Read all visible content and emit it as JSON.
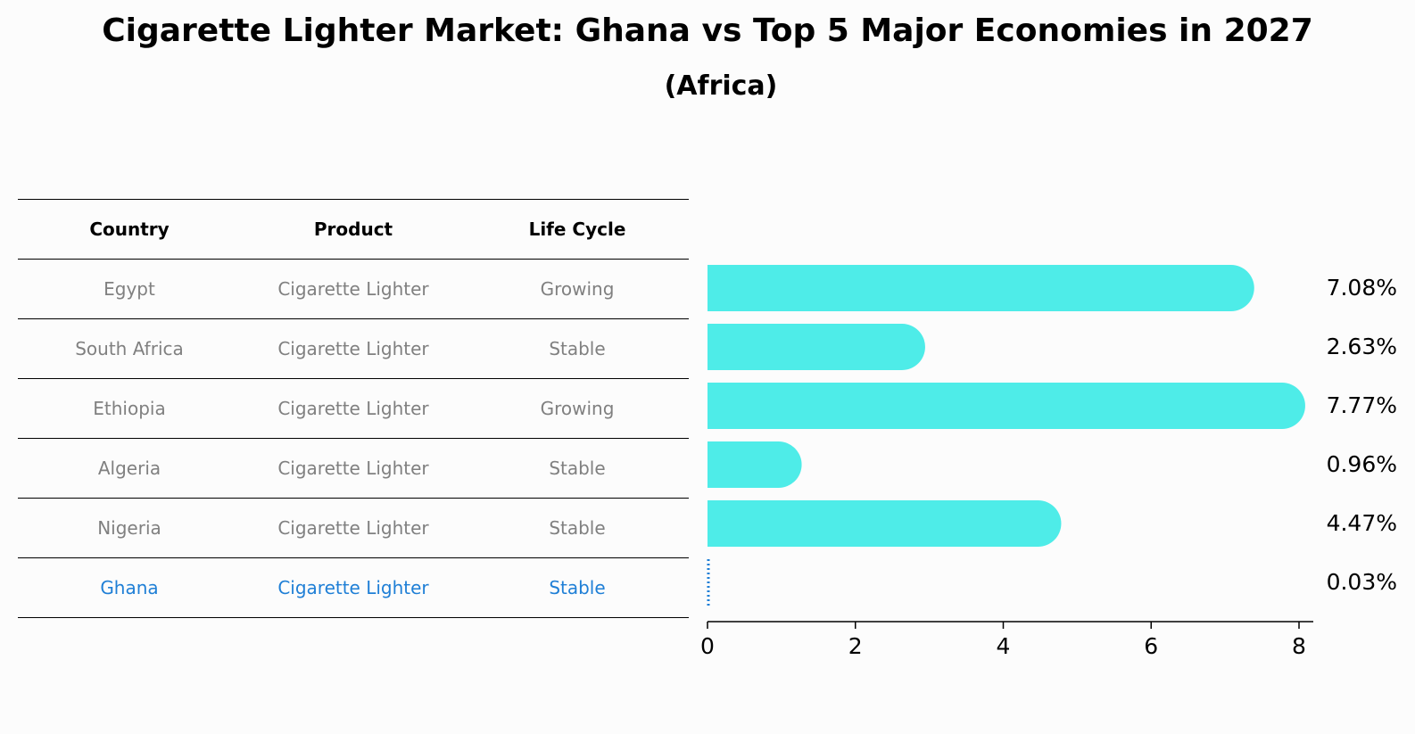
{
  "title": "Cigarette Lighter Market: Ghana vs Top 5 Major Economies in 2027",
  "subtitle": "(Africa)",
  "table": {
    "headers": [
      "Country",
      "Product",
      "Life Cycle"
    ],
    "rows": [
      {
        "country": "Egypt",
        "product": "Cigarette Lighter",
        "life_cycle": "Growing"
      },
      {
        "country": "South Africa",
        "product": "Cigarette Lighter",
        "life_cycle": "Stable"
      },
      {
        "country": "Ethiopia",
        "product": "Cigarette Lighter",
        "life_cycle": "Growing"
      },
      {
        "country": "Algeria",
        "product": "Cigarette Lighter",
        "life_cycle": "Stable"
      },
      {
        "country": "Nigeria",
        "product": "Cigarette Lighter",
        "life_cycle": "Stable"
      },
      {
        "country": "Ghana",
        "product": "Cigarette Lighter",
        "life_cycle": "Stable",
        "highlight": true
      }
    ]
  },
  "colors": {
    "bar": "#4eece8",
    "highlight": "#1f7fd6",
    "muted_text": "#808080"
  },
  "chart_data": {
    "type": "bar",
    "orientation": "horizontal",
    "categories": [
      "Egypt",
      "South Africa",
      "Ethiopia",
      "Algeria",
      "Nigeria",
      "Ghana"
    ],
    "values": [
      7.08,
      2.63,
      7.77,
      0.96,
      4.47,
      0.03
    ],
    "value_labels": [
      "7.08%",
      "2.63%",
      "7.77%",
      "0.96%",
      "4.47%",
      "0.03%"
    ],
    "xlim": [
      0,
      8
    ],
    "xticks": [
      0,
      2,
      4,
      6,
      8
    ],
    "xlabel": "",
    "ylabel": "",
    "grid": false
  }
}
